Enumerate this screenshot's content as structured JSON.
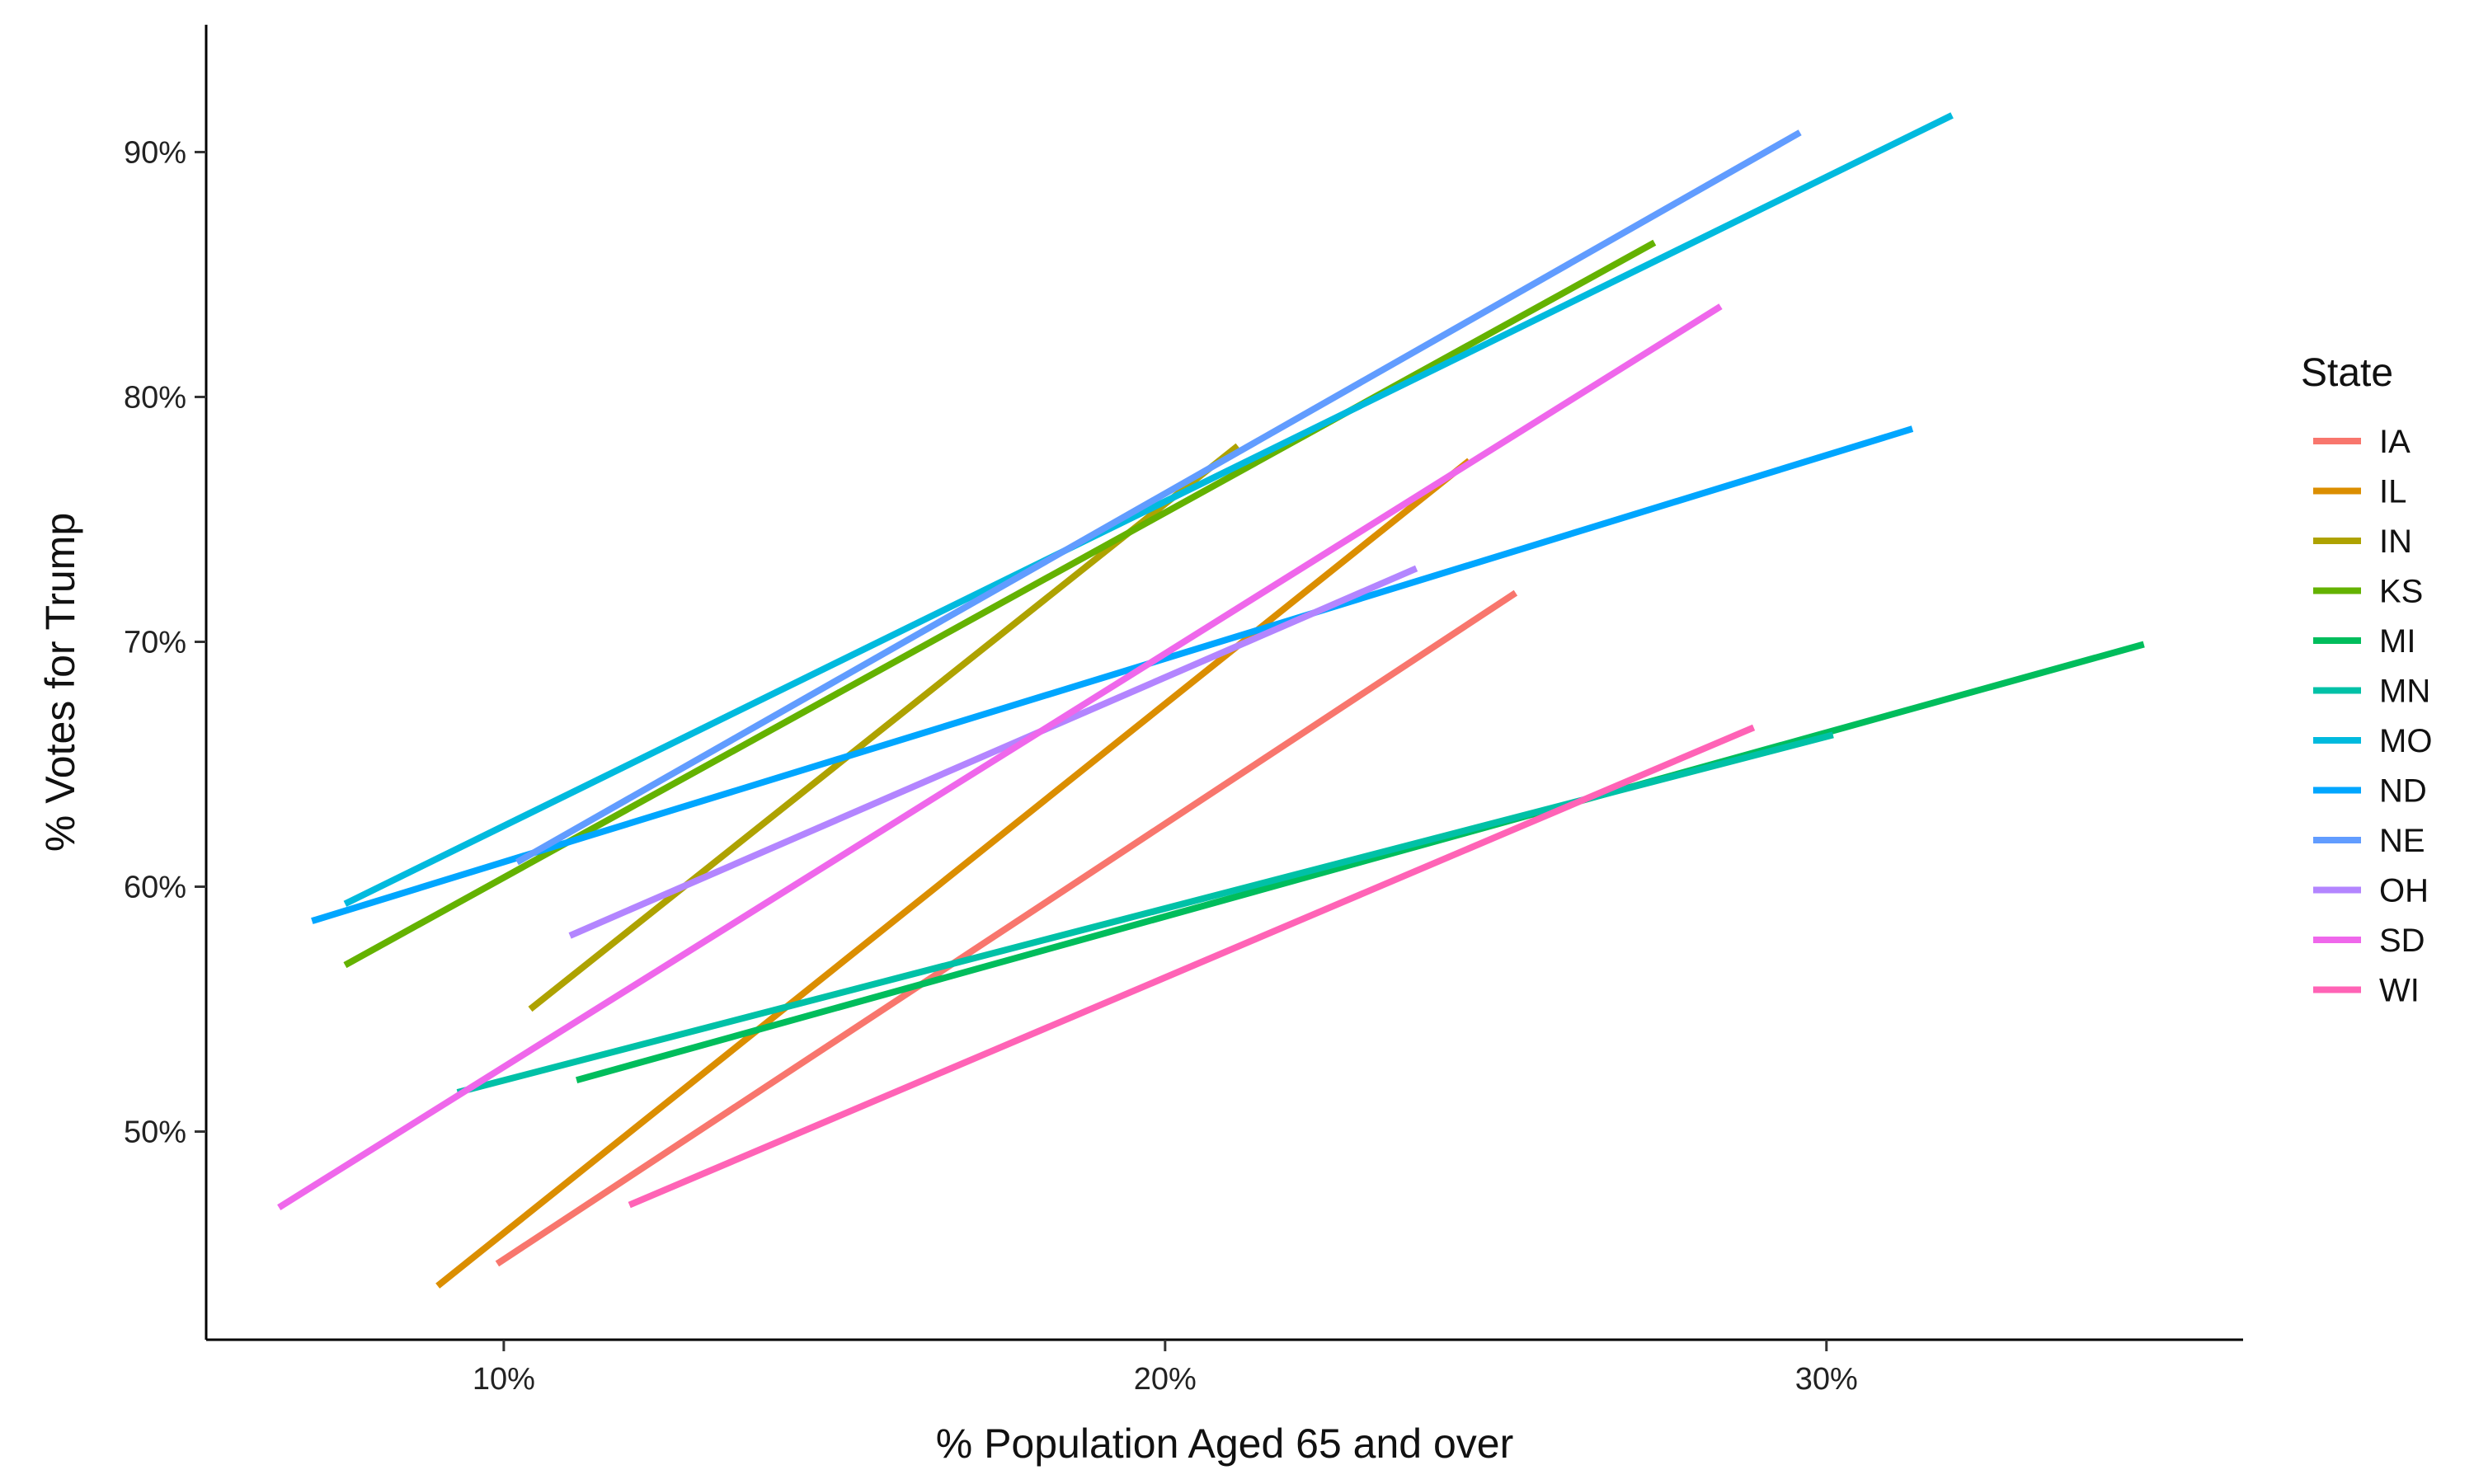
{
  "chart_data": {
    "type": "line",
    "xlabel": "% Population Aged 65 and over",
    "ylabel": "% Votes for Trump",
    "xlim": [
      5.5,
      36.3
    ],
    "ylim": [
      41.5,
      95.2
    ],
    "x_ticks": [
      {
        "value": 10,
        "label": "10%"
      },
      {
        "value": 20,
        "label": "20%"
      },
      {
        "value": 30,
        "label": "30%"
      }
    ],
    "y_ticks": [
      {
        "value": 50,
        "label": "50%"
      },
      {
        "value": 60,
        "label": "60%"
      },
      {
        "value": 70,
        "label": "70%"
      },
      {
        "value": 80,
        "label": "80%"
      },
      {
        "value": 90,
        "label": "90%"
      }
    ],
    "grid": false,
    "legend": {
      "title": "State",
      "position": "right"
    },
    "series": [
      {
        "name": "IA",
        "color": "#F8766D",
        "x": [
          9.9,
          25.3
        ],
        "y": [
          44.6,
          72.0
        ]
      },
      {
        "name": "IL",
        "color": "#DB8E00",
        "x": [
          9.0,
          24.6
        ],
        "y": [
          43.7,
          77.4
        ]
      },
      {
        "name": "IN",
        "color": "#AEA200",
        "x": [
          10.4,
          21.1
        ],
        "y": [
          55.0,
          78.0
        ]
      },
      {
        "name": "KS",
        "color": "#64B200",
        "x": [
          7.6,
          27.4
        ],
        "y": [
          56.8,
          86.3
        ]
      },
      {
        "name": "MI",
        "color": "#00BD5C",
        "x": [
          11.1,
          34.8
        ],
        "y": [
          52.1,
          69.9
        ]
      },
      {
        "name": "MN",
        "color": "#00C1A7",
        "x": [
          9.3,
          30.1
        ],
        "y": [
          51.6,
          66.2
        ]
      },
      {
        "name": "MO",
        "color": "#00BADE",
        "x": [
          7.6,
          31.9
        ],
        "y": [
          59.3,
          91.5
        ]
      },
      {
        "name": "ND",
        "color": "#00A6FF",
        "x": [
          7.1,
          31.3
        ],
        "y": [
          58.6,
          78.7
        ]
      },
      {
        "name": "NE",
        "color": "#619CFF",
        "x": [
          10.2,
          29.6
        ],
        "y": [
          61.0,
          90.8
        ]
      },
      {
        "name": "OH",
        "color": "#B385FF",
        "x": [
          11.0,
          23.8
        ],
        "y": [
          58.0,
          73.0
        ]
      },
      {
        "name": "SD",
        "color": "#EF67EB",
        "x": [
          6.6,
          28.4
        ],
        "y": [
          46.9,
          83.7
        ]
      },
      {
        "name": "WI",
        "color": "#FF63B6",
        "x": [
          11.9,
          28.9
        ],
        "y": [
          47.0,
          66.5
        ]
      }
    ]
  }
}
